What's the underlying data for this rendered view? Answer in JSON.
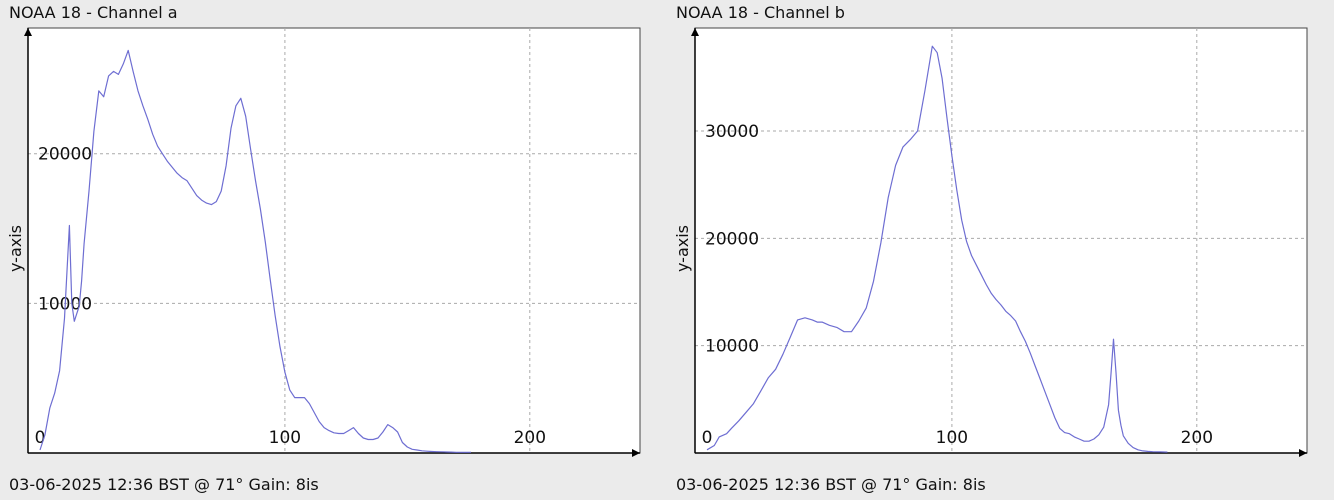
{
  "chart_data": [
    {
      "type": "line",
      "title": "NOAA 18 - Channel a",
      "footer": "03-06-2025 12:36 BST @ 71° Gain: 8is",
      "xlabel": "",
      "ylabel": "y-axis",
      "xlim": [
        0,
        245
      ],
      "ylim": [
        0,
        28400
      ],
      "x_ticks": [
        0,
        100,
        200
      ],
      "y_ticks": [
        10000,
        20000
      ],
      "grid": true,
      "line_color": "#6e6ed2",
      "series": [
        {
          "x": [
            0,
            2,
            4,
            6,
            8,
            10,
            12,
            13,
            14,
            15,
            16,
            17,
            18,
            20,
            22,
            24,
            26,
            28,
            30,
            32,
            34,
            36,
            38,
            40,
            42,
            44,
            46,
            48,
            50,
            52,
            54,
            56,
            58,
            60,
            62,
            64,
            66,
            68,
            70,
            72,
            74,
            76,
            78,
            80,
            82,
            84,
            86,
            88,
            90,
            92,
            94,
            96,
            98,
            100,
            102,
            104,
            106,
            108,
            110,
            112,
            114,
            116,
            118,
            120,
            122,
            124,
            126,
            128,
            130,
            132,
            134,
            136,
            138,
            140,
            142,
            144,
            146,
            148,
            150,
            152,
            154,
            156,
            158,
            160,
            162,
            164,
            166,
            168,
            170,
            172,
            174,
            176
          ],
          "y": [
            200,
            1200,
            3000,
            4000,
            5500,
            9000,
            15200,
            10000,
            8800,
            9300,
            9800,
            11500,
            14000,
            17500,
            21500,
            24200,
            23800,
            25200,
            25500,
            25300,
            26000,
            26900,
            25500,
            24200,
            23200,
            22300,
            21300,
            20500,
            20000,
            19500,
            19100,
            18700,
            18400,
            18200,
            17700,
            17200,
            16900,
            16700,
            16600,
            16800,
            17500,
            19200,
            21700,
            23200,
            23700,
            22500,
            20300,
            18200,
            16300,
            14100,
            11600,
            9200,
            7100,
            5400,
            4200,
            3700,
            3700,
            3700,
            3300,
            2700,
            2100,
            1700,
            1500,
            1350,
            1300,
            1300,
            1500,
            1700,
            1300,
            1000,
            900,
            900,
            1000,
            1400,
            1900,
            1700,
            1400,
            700,
            400,
            250,
            200,
            150,
            120,
            100,
            90,
            80,
            70,
            60,
            50,
            50,
            50,
            50
          ]
        }
      ]
    },
    {
      "type": "line",
      "title": "NOAA 18 - Channel b",
      "footer": "03-06-2025 12:36 BST @ 71° Gain: 8is",
      "xlabel": "",
      "ylabel": "y-axis",
      "xlim": [
        0,
        245
      ],
      "ylim": [
        0,
        39600
      ],
      "x_ticks": [
        0,
        100,
        200
      ],
      "y_ticks": [
        10000,
        20000,
        30000
      ],
      "grid": true,
      "line_color": "#6e6ed2",
      "series": [
        {
          "x": [
            0,
            3,
            5,
            8,
            10,
            13,
            16,
            19,
            22,
            25,
            28,
            31,
            34,
            37,
            40,
            43,
            45,
            47,
            50,
            53,
            56,
            59,
            62,
            65,
            68,
            71,
            74,
            77,
            80,
            83,
            86,
            89,
            92,
            94,
            96,
            98,
            100,
            102,
            104,
            106,
            108,
            110,
            112,
            114,
            116,
            118,
            120,
            122,
            124,
            126,
            128,
            130,
            132,
            134,
            136,
            138,
            140,
            142,
            144,
            146,
            148,
            150,
            152,
            154,
            156,
            158,
            160,
            162,
            164,
            165,
            166,
            167,
            168,
            169,
            170,
            172,
            174,
            176,
            178,
            180,
            182,
            185,
            188
          ],
          "y": [
            300,
            700,
            1500,
            1800,
            2300,
            3000,
            3800,
            4600,
            5800,
            7000,
            7800,
            9200,
            10800,
            12400,
            12600,
            12400,
            12200,
            12200,
            11900,
            11700,
            11300,
            11300,
            12300,
            13500,
            16000,
            19600,
            23800,
            26800,
            28500,
            29200,
            30000,
            33800,
            37900,
            37300,
            34900,
            31200,
            27700,
            24500,
            21700,
            19700,
            18400,
            17500,
            16600,
            15700,
            14900,
            14300,
            13800,
            13200,
            12800,
            12300,
            11300,
            10400,
            9300,
            8100,
            6900,
            5700,
            4500,
            3300,
            2300,
            1900,
            1800,
            1500,
            1300,
            1100,
            1100,
            1300,
            1700,
            2400,
            4500,
            7500,
            10600,
            7500,
            4000,
            2600,
            1600,
            900,
            500,
            300,
            200,
            150,
            120,
            100,
            80
          ]
        }
      ]
    }
  ]
}
